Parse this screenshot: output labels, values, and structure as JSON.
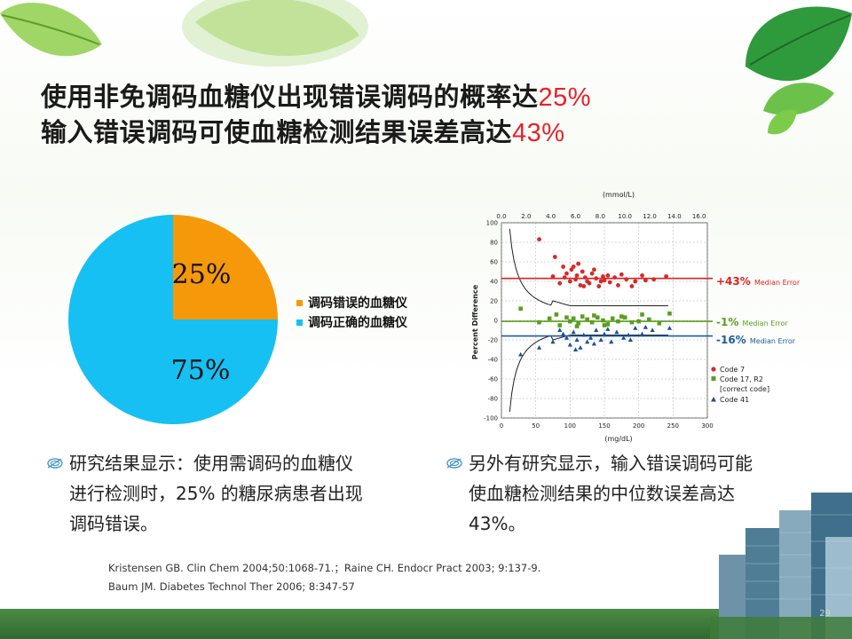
{
  "title": {
    "line1_text": "使用非免调码血糖仪出现错误调码的概率达",
    "line1_highlight": "25%",
    "line2_text": "输入错误调码可使血糖检测结果误差高达",
    "line2_highlight": "43%",
    "highlight_color": "#e8202a"
  },
  "pie": {
    "slices": [
      {
        "label": "25%",
        "value": 25,
        "color": "#f5990b",
        "legend": "调码错误的血糖仪"
      },
      {
        "label": "75%",
        "value": 75,
        "color": "#16c0f2",
        "legend": "调码正确的血糖仪"
      }
    ]
  },
  "scatter": {
    "top_axis_label": "(mmol/L)",
    "top_ticks": [
      "0.0",
      "2.0",
      "4.0",
      "6.0",
      "8.0",
      "10.0",
      "12.0",
      "14.0",
      "16.0"
    ],
    "bottom_axis_label": "(mg/dL)",
    "bottom_ticks": [
      "0",
      "50",
      "100",
      "150",
      "200",
      "250",
      "300"
    ],
    "y_axis_label": "Percent Difference",
    "y_ticks": [
      "100",
      "80",
      "60",
      "40",
      "20",
      "0",
      "-20",
      "-40",
      "-60",
      "-80",
      "-100"
    ],
    "annotations": [
      {
        "main": "+43%",
        "sub": "Median Error",
        "color": "#e02020"
      },
      {
        "main": "-1%",
        "sub": "Median Error",
        "color": "#5a9e1e"
      },
      {
        "main": "-16%",
        "sub": "Median Error",
        "color": "#1a5e9c"
      }
    ],
    "legend": [
      {
        "text": "Code 7",
        "marker": "circle",
        "color": "#d42a2a"
      },
      {
        "text": "Code 17, R2",
        "marker": "square",
        "color": "#5a9e1e"
      },
      {
        "text": "[correct code]",
        "marker": "none",
        "color": "#5a9e1e"
      },
      {
        "text": "Code 41",
        "marker": "triangle",
        "color": "#1e4f9a"
      }
    ]
  },
  "bullets": {
    "left": [
      "研究结果显示：使用需调码的血糖仪",
      "进行检测时，25% 的糖尿病患者出现",
      "调码错误。"
    ],
    "right": [
      "另外有研究显示，输入错误调码可能",
      "使血糖检测结果的中位数误差高达",
      "43%。"
    ]
  },
  "references": [
    "Kristensen GB. Clin Chem 2004;50:1068-71.；Raine CH. Endocr Pract 2003; 9:137-9.",
    "Baum JM.  Diabetes Technol Ther 2006; 8:347-57"
  ],
  "page_number": "29",
  "chart_data": {
    "type": "scatter",
    "x": {
      "label": "(mg/dL)",
      "ticks": [
        0,
        50,
        100,
        150,
        200,
        250,
        300
      ],
      "range": [
        0,
        300
      ]
    },
    "x_top": {
      "label": "(mmol/L)",
      "ticks": [
        0.0,
        2.0,
        4.0,
        6.0,
        8.0,
        10.0,
        12.0,
        14.0,
        16.0
      ]
    },
    "y": {
      "label": "Percent Difference",
      "range": [
        -100,
        100
      ],
      "ticks": [
        100,
        80,
        60,
        40,
        20,
        0,
        -20,
        -40,
        -60,
        -80,
        -100
      ]
    },
    "median_lines": [
      {
        "name": "+43% Median Error",
        "y": 43,
        "color": "#e02020"
      },
      {
        "name": "-1% Median Error",
        "y": -1,
        "color": "#5a9e1e"
      },
      {
        "name": "-16% Median Error",
        "y": -16,
        "color": "#1a5e9c"
      }
    ],
    "series": [
      {
        "name": "Code 7",
        "marker": "circle",
        "color": "#d42a2a",
        "points": [
          [
            55,
            83
          ],
          [
            78,
            65
          ],
          [
            90,
            55
          ],
          [
            95,
            48
          ],
          [
            100,
            40
          ],
          [
            102,
            52
          ],
          [
            108,
            42
          ],
          [
            110,
            46
          ],
          [
            115,
            36
          ],
          [
            118,
            50
          ],
          [
            122,
            44
          ],
          [
            125,
            40
          ],
          [
            128,
            38
          ],
          [
            132,
            48
          ],
          [
            138,
            43
          ],
          [
            142,
            35
          ],
          [
            148,
            45
          ],
          [
            150,
            41
          ],
          [
            158,
            39
          ],
          [
            165,
            44
          ],
          [
            170,
            36
          ],
          [
            182,
            42
          ],
          [
            190,
            35
          ],
          [
            205,
            46
          ],
          [
            210,
            41
          ],
          [
            240,
            45
          ],
          [
            75,
            45
          ],
          [
            85,
            38
          ],
          [
            92,
            44
          ],
          [
            105,
            55
          ],
          [
            112,
            58
          ],
          [
            120,
            35
          ],
          [
            135,
            52
          ],
          [
            145,
            40
          ],
          [
            155,
            46
          ],
          [
            175,
            47
          ],
          [
            195,
            40
          ],
          [
            222,
            42
          ]
        ]
      },
      {
        "name": "Code 17, R2 [correct code]",
        "marker": "square",
        "color": "#5a9e1e",
        "points": [
          [
            28,
            12
          ],
          [
            55,
            -2
          ],
          [
            70,
            2
          ],
          [
            85,
            -5
          ],
          [
            95,
            3
          ],
          [
            100,
            -1
          ],
          [
            105,
            2
          ],
          [
            112,
            -3
          ],
          [
            118,
            4
          ],
          [
            125,
            1
          ],
          [
            132,
            -2
          ],
          [
            140,
            3
          ],
          [
            148,
            0
          ],
          [
            155,
            -4
          ],
          [
            162,
            2
          ],
          [
            170,
            -1
          ],
          [
            180,
            3
          ],
          [
            190,
            -2
          ],
          [
            205,
            6
          ],
          [
            215,
            1
          ],
          [
            230,
            -3
          ],
          [
            245,
            7
          ],
          [
            80,
            6
          ],
          [
            110,
            -6
          ],
          [
            135,
            5
          ],
          [
            150,
            -5
          ],
          [
            175,
            4
          ],
          [
            200,
            -1
          ]
        ]
      },
      {
        "name": "Code 41",
        "marker": "triangle",
        "color": "#1e4f9a",
        "points": [
          [
            28,
            -35
          ],
          [
            55,
            -28
          ],
          [
            75,
            -22
          ],
          [
            85,
            -10
          ],
          [
            95,
            -18
          ],
          [
            100,
            -25
          ],
          [
            105,
            -12
          ],
          [
            110,
            -20
          ],
          [
            115,
            -28
          ],
          [
            120,
            -15
          ],
          [
            125,
            -22
          ],
          [
            130,
            -18
          ],
          [
            138,
            -10
          ],
          [
            145,
            -20
          ],
          [
            150,
            -14
          ],
          [
            160,
            -22
          ],
          [
            168,
            -12
          ],
          [
            178,
            -18
          ],
          [
            188,
            -20
          ],
          [
            195,
            -8
          ],
          [
            205,
            -14
          ],
          [
            220,
            -10
          ],
          [
            245,
            -8
          ],
          [
            90,
            -14
          ],
          [
            108,
            -30
          ],
          [
            135,
            -24
          ],
          [
            155,
            -9
          ],
          [
            185,
            -15
          ],
          [
            210,
            -7
          ]
        ]
      }
    ]
  }
}
